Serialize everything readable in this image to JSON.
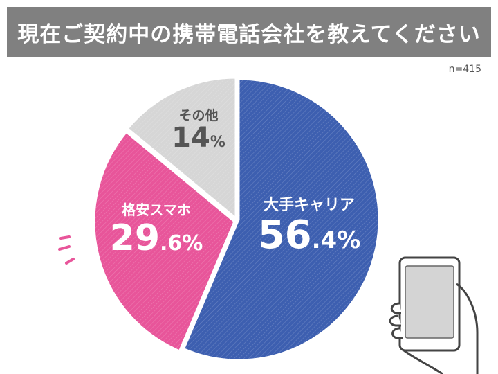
{
  "title": "現在ご契約中の携帯電話会社を教えてください",
  "sample_size": "n=415",
  "colors": {
    "title_bar": "#808080",
    "major_carrier": "#3d5fb0",
    "budget_sim": "#e8559a",
    "other": "#d6d6d6",
    "other_text": "#555555"
  },
  "chart_data": {
    "type": "pie",
    "slices": [
      {
        "label": "大手キャリア",
        "value": 56.4,
        "pct_big": "56",
        "pct_small": ".4%",
        "color": "#3d5fb0",
        "text_color": "#ffffff"
      },
      {
        "label": "格安スマホ",
        "value": 29.6,
        "pct_big": "29",
        "pct_small": ".6%",
        "color": "#e8559a",
        "text_color": "#ffffff"
      },
      {
        "label": "その他",
        "value": 14,
        "pct_big": "14",
        "pct_small": "%",
        "color": "#d6d6d6",
        "text_color": "#555555"
      }
    ]
  },
  "icons": [
    "smartphone-in-hand-icon",
    "accent-dashes-icon"
  ]
}
